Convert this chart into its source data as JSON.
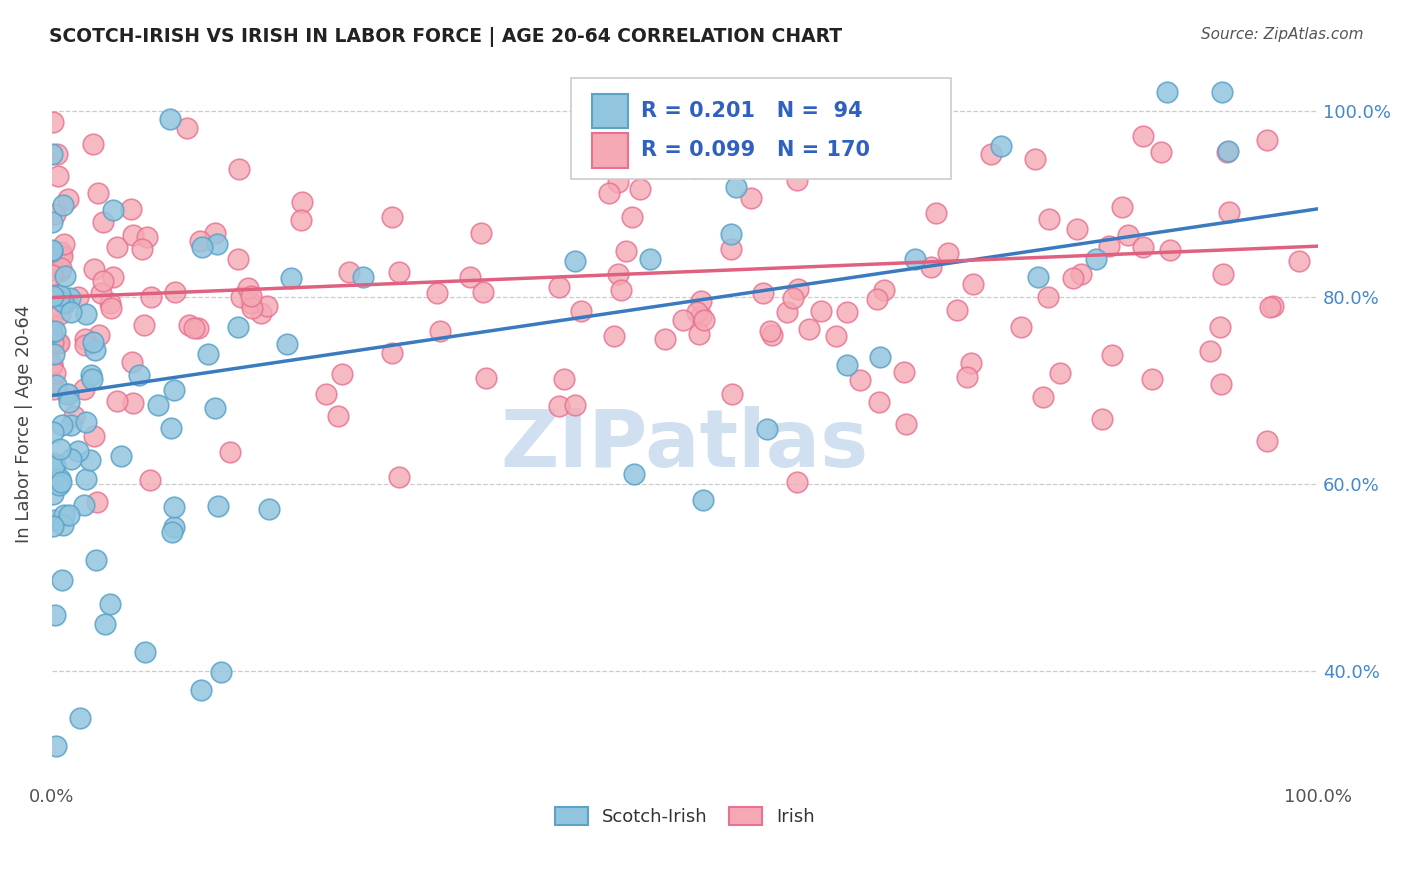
{
  "title": "SCOTCH-IRISH VS IRISH IN LABOR FORCE | AGE 20-64 CORRELATION CHART",
  "source": "Source: ZipAtlas.com",
  "ylabel": "In Labor Force | Age 20-64",
  "xlim": [
    0.0,
    1.0
  ],
  "ylim": [
    0.28,
    1.05
  ],
  "ytick_values": [
    0.4,
    0.6,
    0.8,
    1.0
  ],
  "ytick_labels": [
    "40.0%",
    "60.0%",
    "80.0%",
    "100.0%"
  ],
  "legend_r1": "0.201",
  "legend_n1": "94",
  "legend_r2": "0.099",
  "legend_n2": "170",
  "blue_color": "#92c5de",
  "blue_edge_color": "#5ba3c9",
  "blue_line_color": "#3a7bbf",
  "pink_color": "#f4a9b4",
  "pink_edge_color": "#e87090",
  "pink_line_color": "#e06080",
  "legend_text_color": "#3060c0",
  "watermark_color": "#ccddf0",
  "background_color": "#ffffff",
  "grid_color": "#cccccc",
  "title_color": "#222222",
  "source_color": "#555555",
  "axis_label_color": "#444444",
  "tick_label_color": "#4488cc"
}
